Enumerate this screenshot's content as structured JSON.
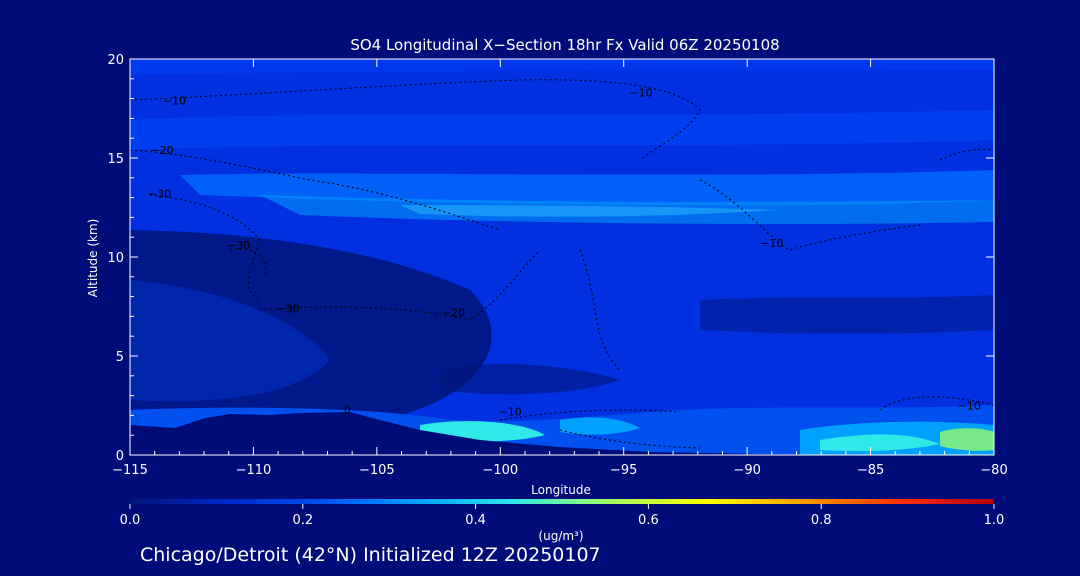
{
  "chart_data": {
    "type": "heatmap",
    "title": "SO4 Longitudinal X−Section 18hr  Fx Valid 06Z 20250108",
    "xlabel": "Longitude",
    "ylabel": "Altitude (km)",
    "xlim": [
      -115,
      -80
    ],
    "ylim": [
      0,
      20
    ],
    "x_ticks": [
      -115,
      -110,
      -105,
      -100,
      -95,
      -90,
      -85,
      -80
    ],
    "x_tick_labels": [
      "−115",
      "−110",
      "−105",
      "−100",
      "−95",
      "−90",
      "−85",
      "−80"
    ],
    "y_ticks": [
      0,
      5,
      10,
      15,
      20
    ],
    "y_tick_labels": [
      "0",
      "5",
      "10",
      "15",
      "20"
    ],
    "colorbar": {
      "label": "(ug/m³)",
      "range": [
        0.0,
        1.0
      ],
      "ticks": [
        0.0,
        0.2,
        0.4,
        0.6,
        0.8,
        1.0
      ],
      "tick_labels": [
        "0.0",
        "0.2",
        "0.4",
        "0.6",
        "0.8",
        "1.0"
      ],
      "colors": [
        "#00147a",
        "#0028c8",
        "#0050f0",
        "#00a0ff",
        "#30e8e8",
        "#a0ff60",
        "#ffff00",
        "#ffa000",
        "#ff3000",
        "#b40000"
      ]
    },
    "contour_labels": [
      {
        "text": "−10",
        "lon": -113.2,
        "alt": 17.7
      },
      {
        "text": "−20",
        "lon": -113.7,
        "alt": 15.2
      },
      {
        "text": "−30",
        "lon": -113.8,
        "alt": 13.0
      },
      {
        "text": "−30",
        "lon": -110.6,
        "alt": 10.4
      },
      {
        "text": "−30",
        "lon": -108.6,
        "alt": 7.2
      },
      {
        "text": "−20",
        "lon": -101.9,
        "alt": 7.0
      },
      {
        "text": "−10",
        "lon": -94.3,
        "alt": 18.1
      },
      {
        "text": "−10",
        "lon": -89.0,
        "alt": 10.5
      },
      {
        "text": "−10",
        "lon": -99.6,
        "alt": 2.0
      },
      {
        "text": "−10",
        "lon": -81.0,
        "alt": 2.3
      },
      {
        "text": "0",
        "lon": -106.2,
        "alt": 2.1
      }
    ]
  },
  "footer": "Chicago/Detroit (42°N) Initialized 12Z 20250107"
}
